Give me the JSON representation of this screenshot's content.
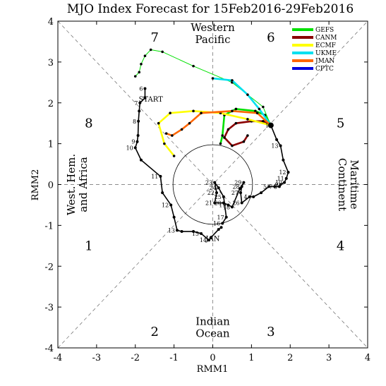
{
  "chart_data": {
    "type": "scatter",
    "title": "MJO Index Forecast for 15Feb2016-29Feb2016",
    "xlabel": "RMM1",
    "ylabel": "RMM2",
    "xlim": [
      -4,
      4
    ],
    "ylim": [
      -4,
      4
    ],
    "xticks": [
      "-4",
      "-3",
      "-2",
      "-1",
      "0",
      "1",
      "2",
      "3",
      "4"
    ],
    "yticks": [
      "-4",
      "-3",
      "-2",
      "-1",
      "0",
      "1",
      "2",
      "3",
      "4"
    ],
    "phase_labels": [
      {
        "label": "1",
        "x": -3.2,
        "y": -1.5
      },
      {
        "label": "2",
        "x": -1.5,
        "y": -3.6
      },
      {
        "label": "3",
        "x": 1.5,
        "y": -3.6
      },
      {
        "label": "4",
        "x": 3.3,
        "y": -1.5
      },
      {
        "label": "5",
        "x": 3.3,
        "y": 1.5
      },
      {
        "label": "6",
        "x": 1.5,
        "y": 3.6
      },
      {
        "label": "7",
        "x": -1.5,
        "y": 3.6
      },
      {
        "label": "8",
        "x": -3.2,
        "y": 1.5
      }
    ],
    "regions": [
      {
        "lines": [
          "Western",
          "Pacific"
        ],
        "x": 0,
        "y": 3.7,
        "rotate": 0
      },
      {
        "lines": [
          "Indian",
          "Ocean"
        ],
        "x": 0,
        "y": -3.5,
        "rotate": 0
      },
      {
        "lines": [
          "West. Hem.",
          "and Africa"
        ],
        "x": -3.5,
        "y": 0,
        "rotate": -90
      },
      {
        "lines": [
          "Maritime",
          "Continent"
        ],
        "x": 3.5,
        "y": 0,
        "rotate": 90
      }
    ],
    "annotations": [
      {
        "text": "START",
        "x": -1.6,
        "y": 2.03
      },
      {
        "text": "JAN",
        "x": 0.0,
        "y": -1.38
      }
    ],
    "legend_position": "top-right",
    "legend": [
      {
        "name": "GEFS",
        "color": "#00e000"
      },
      {
        "name": "CANM",
        "color": "#8b0000"
      },
      {
        "name": "ECMF",
        "color": "#ffff00"
      },
      {
        "name": "UKME",
        "color": "#00e0f0"
      },
      {
        "name": "JMAN",
        "color": "#ff6600"
      },
      {
        "name": "CPTC",
        "color": "#0000dd"
      }
    ],
    "observed": {
      "color": "#000000",
      "points": [
        {
          "x": 0.22,
          "y": -1.05
        },
        {
          "x": 0.15,
          "y": -1.1
        },
        {
          "x": -0.05,
          "y": -1.3
        },
        {
          "x": -0.1,
          "y": -1.36,
          "label": "14"
        },
        {
          "x": -0.3,
          "y": -1.2,
          "label": "15"
        },
        {
          "x": -0.5,
          "y": -1.15
        },
        {
          "x": -0.8,
          "y": -1.15
        },
        {
          "x": -0.92,
          "y": -1.12,
          "label": "13"
        },
        {
          "x": -1.0,
          "y": -0.8
        },
        {
          "x": -1.08,
          "y": -0.5,
          "label": "12"
        },
        {
          "x": -1.3,
          "y": -0.2
        },
        {
          "x": -1.35,
          "y": 0.2,
          "label": "11"
        },
        {
          "x": -1.85,
          "y": 0.6
        },
        {
          "x": -2.0,
          "y": 0.9,
          "label": "10"
        },
        {
          "x": -1.95,
          "y": 1.05,
          "label": "9"
        },
        {
          "x": -1.93,
          "y": 1.2
        },
        {
          "x": -1.92,
          "y": 1.55,
          "label": "8"
        },
        {
          "x": -1.9,
          "y": 1.8
        },
        {
          "x": -1.88,
          "y": 2.0,
          "label": "7"
        },
        {
          "x": -1.75,
          "y": 2.12
        },
        {
          "x": -1.75,
          "y": 2.35,
          "label": "6"
        }
      ]
    },
    "observed_recent": {
      "color": "#000000",
      "points": [
        {
          "x": 1.5,
          "y": 1.45,
          "label": "1"
        },
        {
          "x": 1.65,
          "y": 1.1
        },
        {
          "x": 1.75,
          "y": 0.95,
          "label": "13"
        },
        {
          "x": 1.82,
          "y": 0.6
        },
        {
          "x": 1.95,
          "y": 0.3,
          "label": "12"
        },
        {
          "x": 1.9,
          "y": 0.15,
          "label": "11"
        },
        {
          "x": 1.85,
          "y": 0.05,
          "label": "10"
        },
        {
          "x": 1.75,
          "y": 0.0,
          "label": "9"
        },
        {
          "x": 1.72,
          "y": -0.05,
          "label": "8"
        },
        {
          "x": 1.6,
          "y": -0.05,
          "label": "7"
        },
        {
          "x": 1.45,
          "y": -0.05,
          "label": "5"
        },
        {
          "x": 1.25,
          "y": -0.2
        },
        {
          "x": 1.05,
          "y": -0.3
        },
        {
          "x": 0.95,
          "y": -0.3,
          "label": "4"
        },
        {
          "x": 0.75,
          "y": -0.45,
          "label": "26"
        },
        {
          "x": 0.72,
          "y": -0.2,
          "label": "27"
        },
        {
          "x": 0.75,
          "y": -0.05,
          "label": "28"
        },
        {
          "x": 0.8,
          "y": 0.05,
          "label": "29"
        },
        {
          "x": 0.7,
          "y": -0.1
        },
        {
          "x": 0.5,
          "y": -0.55,
          "label": "18"
        },
        {
          "x": 0.4,
          "y": -0.5,
          "label": "19"
        },
        {
          "x": 0.28,
          "y": -0.45,
          "label": "20"
        },
        {
          "x": 0.05,
          "y": -0.45,
          "label": "21"
        },
        {
          "x": 0.1,
          "y": -0.2,
          "label": "22"
        },
        {
          "x": 0.05,
          "y": 0.05,
          "label": "23"
        },
        {
          "x": 0.15,
          "y": -0.08,
          "label": "24"
        },
        {
          "x": 0.28,
          "y": -0.3,
          "label": "25"
        },
        {
          "x": 0.35,
          "y": -0.8,
          "label": "17"
        },
        {
          "x": 0.25,
          "y": -0.95,
          "label": "16"
        }
      ]
    },
    "forecasts": [
      {
        "name": "GEFS",
        "color": "#00e000",
        "points": [
          {
            "x": 1.5,
            "y": 1.45
          },
          {
            "x": 1.35,
            "y": 1.7
          },
          {
            "x": 1.1,
            "y": 1.8
          },
          {
            "x": 0.6,
            "y": 1.85
          },
          {
            "x": 0.3,
            "y": 1.7
          },
          {
            "x": 0.25,
            "y": 1.2
          },
          {
            "x": 0.2,
            "y": 1.0
          }
        ]
      },
      {
        "name": "GEFS-ensemble",
        "color": "#00e000",
        "points": [
          {
            "x": 1.5,
            "y": 1.45
          },
          {
            "x": 1.3,
            "y": 1.9
          },
          {
            "x": 0.5,
            "y": 2.5
          },
          {
            "x": -0.5,
            "y": 2.9
          },
          {
            "x": -1.3,
            "y": 3.25
          },
          {
            "x": -1.6,
            "y": 3.3
          },
          {
            "x": -1.75,
            "y": 3.15
          },
          {
            "x": -1.85,
            "y": 2.95
          },
          {
            "x": -1.9,
            "y": 2.75
          },
          {
            "x": -2.0,
            "y": 2.65
          }
        ]
      },
      {
        "name": "CANM",
        "color": "#8b0000",
        "points": [
          {
            "x": 1.5,
            "y": 1.45
          },
          {
            "x": 1.3,
            "y": 1.55
          },
          {
            "x": 1.0,
            "y": 1.55
          },
          {
            "x": 0.6,
            "y": 1.5
          },
          {
            "x": 0.4,
            "y": 1.35
          },
          {
            "x": 0.3,
            "y": 1.15
          },
          {
            "x": 0.5,
            "y": 0.95
          },
          {
            "x": 0.8,
            "y": 1.05
          },
          {
            "x": 0.9,
            "y": 1.2
          }
        ]
      },
      {
        "name": "ECMF",
        "color": "#ffff00",
        "points": [
          {
            "x": 1.5,
            "y": 1.45
          },
          {
            "x": 0.9,
            "y": 1.6
          },
          {
            "x": 0.2,
            "y": 1.75
          },
          {
            "x": -0.5,
            "y": 1.8
          },
          {
            "x": -1.1,
            "y": 1.75
          },
          {
            "x": -1.4,
            "y": 1.5
          },
          {
            "x": -1.25,
            "y": 1.0
          },
          {
            "x": -1.0,
            "y": 0.7
          }
        ]
      },
      {
        "name": "UKME",
        "color": "#00e0f0",
        "points": [
          {
            "x": 1.5,
            "y": 1.45
          },
          {
            "x": 1.2,
            "y": 1.85
          },
          {
            "x": 0.9,
            "y": 2.2
          },
          {
            "x": 0.5,
            "y": 2.55
          },
          {
            "x": 0.0,
            "y": 2.6
          }
        ]
      },
      {
        "name": "JMAN",
        "color": "#ff6600",
        "points": [
          {
            "x": 1.5,
            "y": 1.45
          },
          {
            "x": 1.15,
            "y": 1.75
          },
          {
            "x": 0.5,
            "y": 1.8
          },
          {
            "x": -0.3,
            "y": 1.75
          },
          {
            "x": -0.6,
            "y": 1.5
          },
          {
            "x": -0.8,
            "y": 1.35
          },
          {
            "x": -1.05,
            "y": 1.2
          },
          {
            "x": -1.2,
            "y": 1.25
          }
        ]
      }
    ]
  }
}
